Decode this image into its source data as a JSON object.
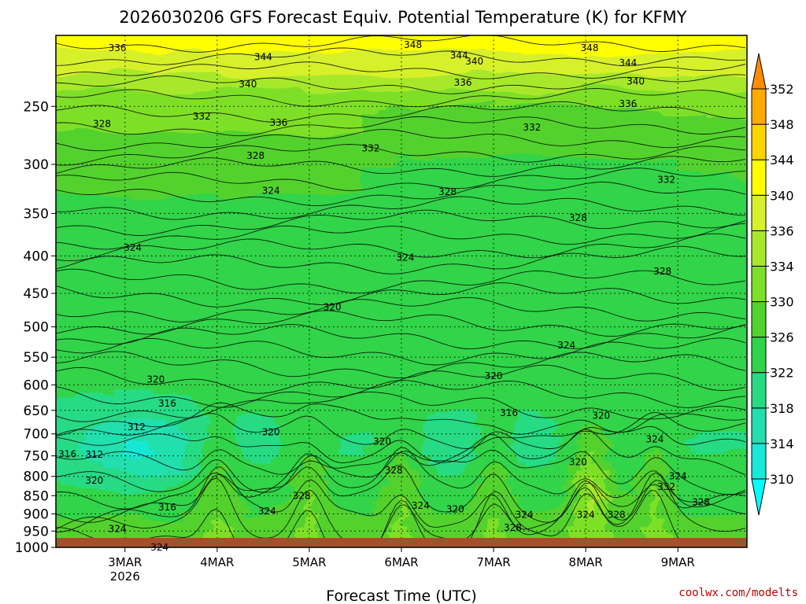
{
  "chart_data": {
    "type": "heatmap",
    "title": "2026030206 GFS Forecast Equiv. Potential Temperature (K) for KFMY",
    "xlabel": "Forecast Time (UTC)",
    "ylabel": "",
    "credit": "coolwx.com/modelts",
    "x_ticks": [
      {
        "label": "3MAR",
        "sub": "2026",
        "hour": 18
      },
      {
        "label": "4MAR",
        "sub": "",
        "hour": 42
      },
      {
        "label": "5MAR",
        "sub": "",
        "hour": 66
      },
      {
        "label": "6MAR",
        "sub": "",
        "hour": 90
      },
      {
        "label": "7MAR",
        "sub": "",
        "hour": 114
      },
      {
        "label": "8MAR",
        "sub": "",
        "hour": 138
      },
      {
        "label": "9MAR",
        "sub": "",
        "hour": 162
      }
    ],
    "x_range_hours": [
      0,
      180
    ],
    "y_scale": "log",
    "y_range_hPa": [
      1000,
      200
    ],
    "y_ticks": [
      250,
      300,
      350,
      400,
      450,
      500,
      550,
      600,
      650,
      700,
      750,
      800,
      850,
      900,
      950,
      1000
    ],
    "colorbar": {
      "labels": [
        310,
        314,
        318,
        322,
        326,
        330,
        334,
        336,
        340,
        344,
        348,
        352
      ],
      "colors": [
        "#00ffff",
        "#19e8d8",
        "#22dfae",
        "#27db84",
        "#30d44a",
        "#52d22e",
        "#7ee028",
        "#a8e82a",
        "#d7f02c",
        "#ffff00",
        "#ffd500",
        "#ffaa00",
        "#ff8c00"
      ]
    },
    "contour_labels": [
      {
        "v": "336",
        "h": 16,
        "p": 208
      },
      {
        "v": "344",
        "h": 54,
        "p": 214
      },
      {
        "v": "348",
        "h": 93,
        "p": 206
      },
      {
        "v": "344",
        "h": 105,
        "p": 213
      },
      {
        "v": "340",
        "h": 109,
        "p": 217
      },
      {
        "v": "348",
        "h": 139,
        "p": 208
      },
      {
        "v": "344",
        "h": 149,
        "p": 218
      },
      {
        "v": "340",
        "h": 50,
        "p": 233
      },
      {
        "v": "336",
        "h": 106,
        "p": 232
      },
      {
        "v": "340",
        "h": 151,
        "p": 231
      },
      {
        "v": "336",
        "h": 149,
        "p": 248
      },
      {
        "v": "332",
        "h": 38,
        "p": 258
      },
      {
        "v": "336",
        "h": 58,
        "p": 263
      },
      {
        "v": "328",
        "h": 12,
        "p": 264
      },
      {
        "v": "332",
        "h": 124,
        "p": 267
      },
      {
        "v": "332",
        "h": 82,
        "p": 285
      },
      {
        "v": "328",
        "h": 52,
        "p": 292
      },
      {
        "v": "332",
        "h": 159,
        "p": 315
      },
      {
        "v": "324",
        "h": 56,
        "p": 326
      },
      {
        "v": "328",
        "h": 102,
        "p": 327
      },
      {
        "v": "328",
        "h": 136,
        "p": 355
      },
      {
        "v": "324",
        "h": 20,
        "p": 390
      },
      {
        "v": "324",
        "h": 91,
        "p": 402
      },
      {
        "v": "328",
        "h": 158,
        "p": 420
      },
      {
        "v": "320",
        "h": 72,
        "p": 470
      },
      {
        "v": "324",
        "h": 133,
        "p": 530
      },
      {
        "v": "320",
        "h": 26,
        "p": 590
      },
      {
        "v": "320",
        "h": 114,
        "p": 583
      },
      {
        "v": "316",
        "h": 29,
        "p": 636
      },
      {
        "v": "316",
        "h": 118,
        "p": 655
      },
      {
        "v": "320",
        "h": 142,
        "p": 661
      },
      {
        "v": "312",
        "h": 21,
        "p": 685
      },
      {
        "v": "320",
        "h": 56,
        "p": 696
      },
      {
        "v": "324",
        "h": 156,
        "p": 712
      },
      {
        "v": "320",
        "h": 85,
        "p": 717
      },
      {
        "v": "316",
        "h": 3,
        "p": 746
      },
      {
        "v": "312",
        "h": 10,
        "p": 747
      },
      {
        "v": "320",
        "h": 136,
        "p": 765
      },
      {
        "v": "328",
        "h": 88,
        "p": 785
      },
      {
        "v": "320",
        "h": 10,
        "p": 810
      },
      {
        "v": "324",
        "h": 162,
        "p": 800
      },
      {
        "v": "332",
        "h": 159,
        "p": 827
      },
      {
        "v": "328",
        "h": 64,
        "p": 850
      },
      {
        "v": "328",
        "h": 168,
        "p": 867
      },
      {
        "v": "316",
        "h": 29,
        "p": 882
      },
      {
        "v": "324",
        "h": 55,
        "p": 892
      },
      {
        "v": "324",
        "h": 95,
        "p": 877
      },
      {
        "v": "320",
        "h": 104,
        "p": 887
      },
      {
        "v": "324",
        "h": 122,
        "p": 902
      },
      {
        "v": "324",
        "h": 138,
        "p": 902
      },
      {
        "v": "328",
        "h": 146,
        "p": 902
      },
      {
        "v": "328",
        "h": 119,
        "p": 940
      },
      {
        "v": "324",
        "h": 16,
        "p": 944
      },
      {
        "v": "324",
        "h": 27,
        "p": 1000
      }
    ]
  }
}
